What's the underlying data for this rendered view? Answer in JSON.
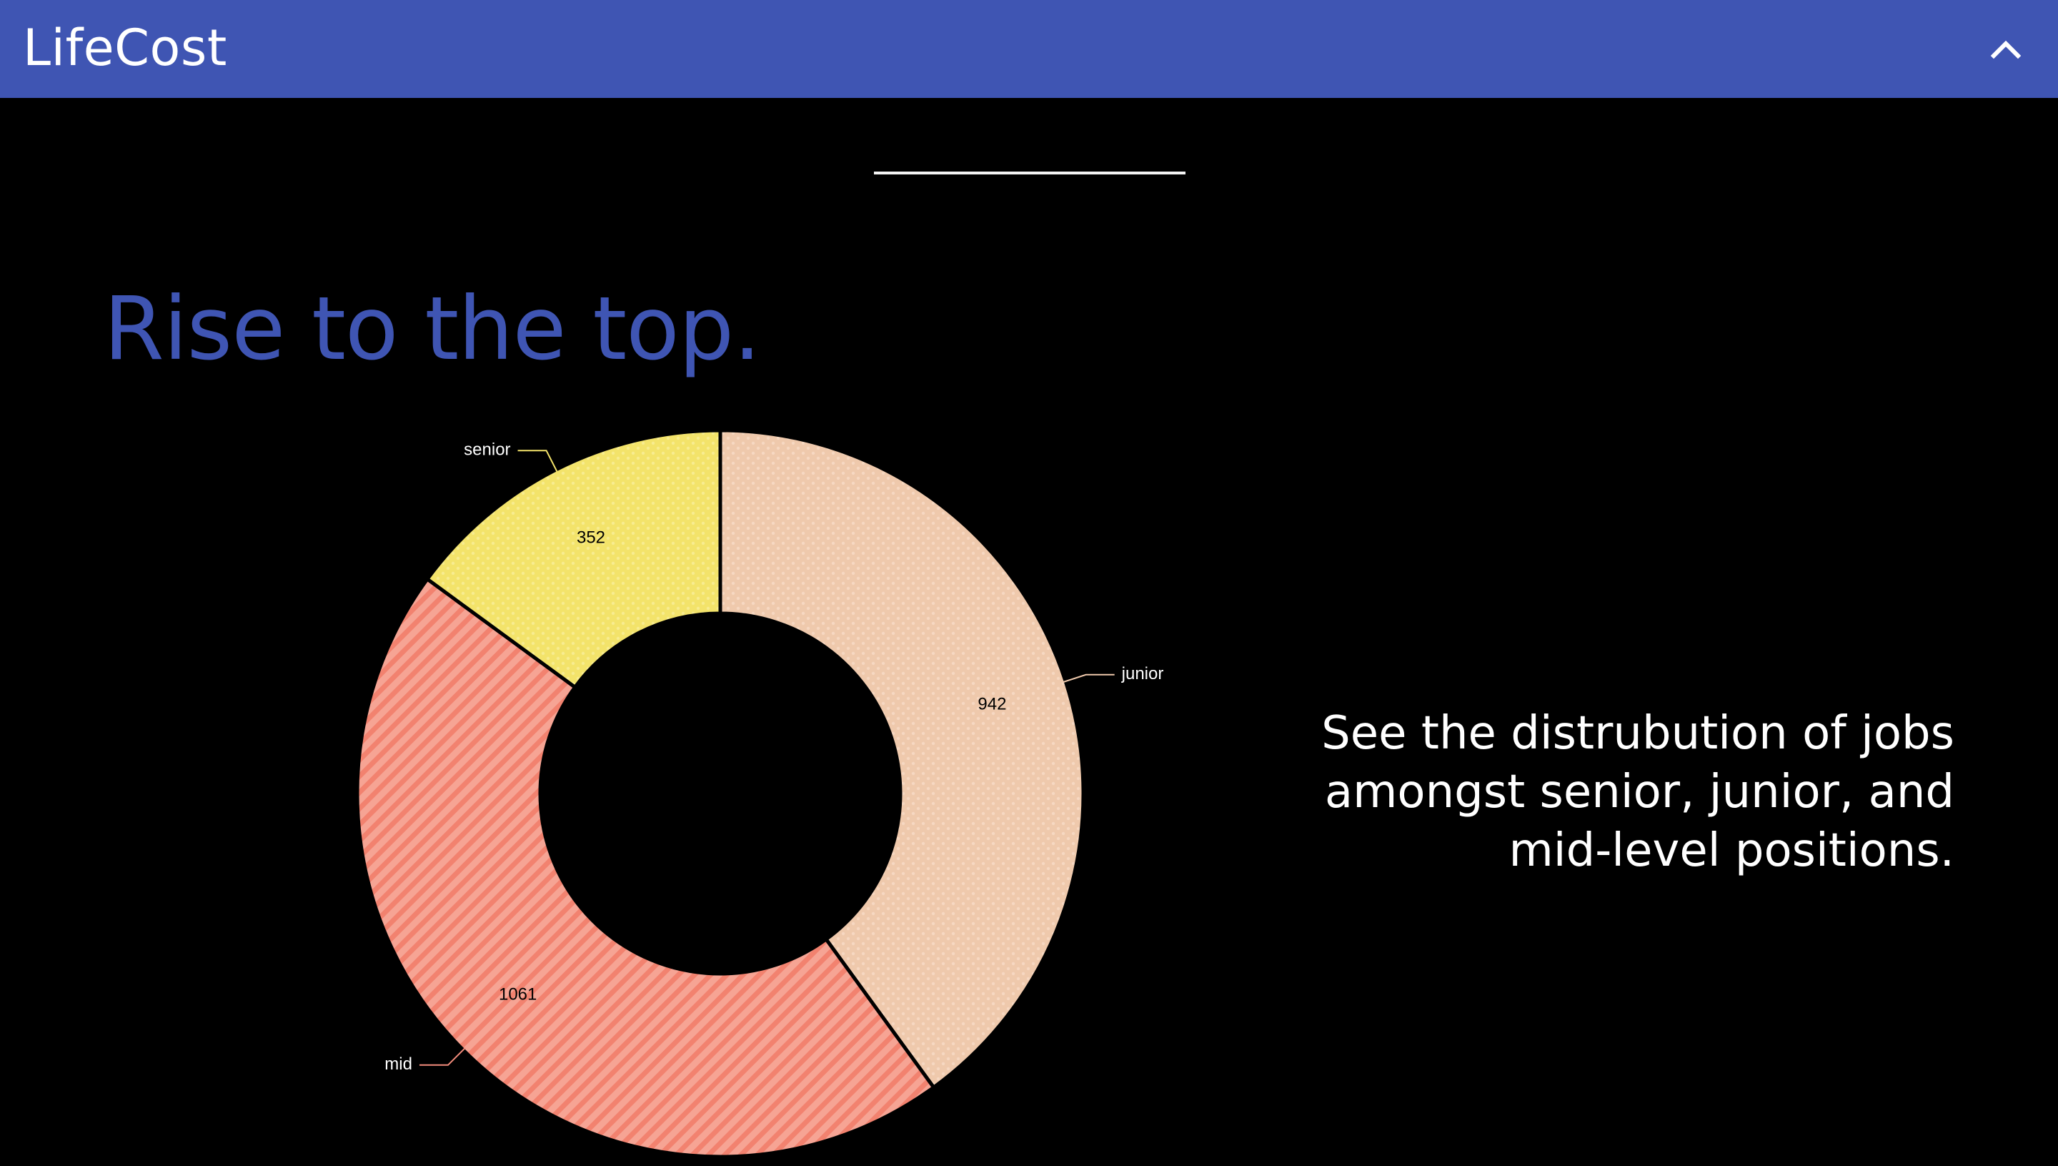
{
  "app": {
    "title": "LifeCost"
  },
  "header": {
    "collapse_icon": "chevron-up-icon"
  },
  "main": {
    "headline": "Rise to the top.",
    "description": "See the distrubution of jobs amongst senior, junior, and mid-level positions."
  },
  "chart_data": {
    "type": "pie",
    "variant": "donut",
    "categories": [
      "junior",
      "mid",
      "senior"
    ],
    "values": [
      942,
      1061,
      352
    ],
    "colors": [
      "#efc9ac",
      "#f48c7c",
      "#f4e46b"
    ],
    "patterns": [
      "dots",
      "stripes",
      "dots"
    ],
    "title": "",
    "legend": "outside-labels"
  }
}
